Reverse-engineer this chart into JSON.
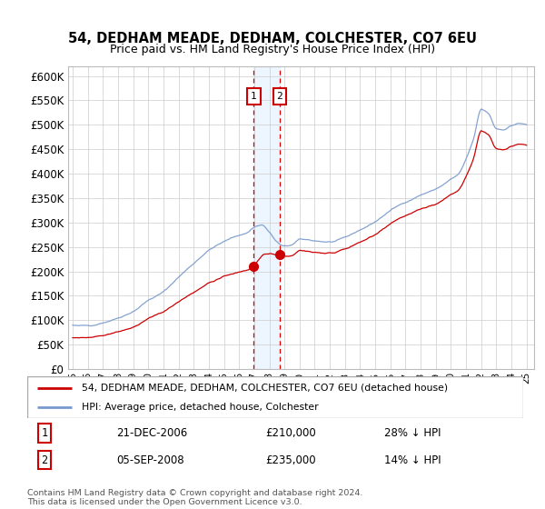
{
  "title": "54, DEDHAM MEADE, DEDHAM, COLCHESTER, CO7 6EU",
  "subtitle": "Price paid vs. HM Land Registry's House Price Index (HPI)",
  "yticks": [
    0,
    50000,
    100000,
    150000,
    200000,
    250000,
    300000,
    350000,
    400000,
    450000,
    500000,
    550000,
    600000
  ],
  "xlim_start": 1994.7,
  "xlim_end": 2025.5,
  "ylim": [
    0,
    620000
  ],
  "sale1_date": 2006.97,
  "sale1_price": 210000,
  "sale2_date": 2008.68,
  "sale2_price": 235000,
  "house_color": "#cc0000",
  "hpi_color": "#7799cc",
  "shade_color": "#ddeeff",
  "grid_color": "#cccccc",
  "legend_house": "54, DEDHAM MEADE, DEDHAM, COLCHESTER, CO7 6EU (detached house)",
  "legend_hpi": "HPI: Average price, detached house, Colchester",
  "sale1_text": "21-DEC-2006",
  "sale1_price_str": "£210,000",
  "sale1_pct": "28% ↓ HPI",
  "sale2_text": "05-SEP-2008",
  "sale2_price_str": "£235,000",
  "sale2_pct": "14% ↓ HPI",
  "footer": "Contains HM Land Registry data © Crown copyright and database right 2024.\nThis data is licensed under the Open Government Licence v3.0."
}
